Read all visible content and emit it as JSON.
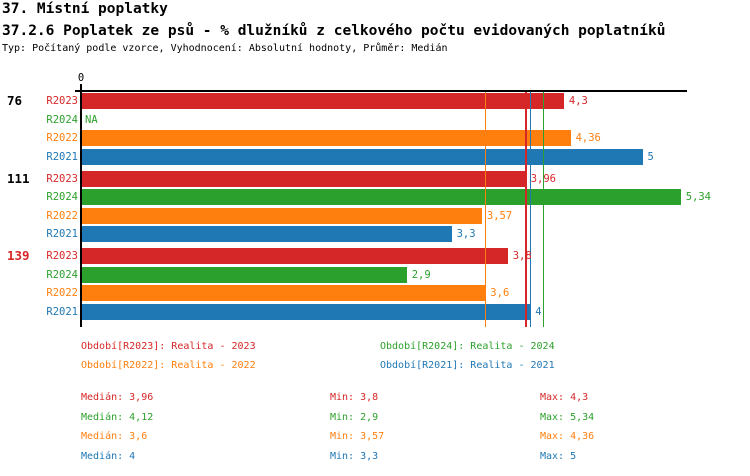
{
  "header": {
    "section_title": "37. Místní poplatky",
    "chart_title": "37.2.6 Poplatek ze psů - % dlužníků z celkového počtu evidovaných poplatníků",
    "meta": "Typ: Počítaný podle vzorce, Vyhodnocení: Absolutní hodnoty, Průměr: Medián"
  },
  "chart_data": {
    "type": "bar",
    "orientation": "horizontal",
    "title": "37.2.6 Poplatek ze psů - % dlužníků z celkového počtu evidovaných poplatníků",
    "xlabel": "",
    "ylabel": "",
    "xlim": [
      0,
      5.4
    ],
    "x_tick_labels": [
      "0"
    ],
    "grid": false,
    "categories": [
      "76",
      "111",
      "139"
    ],
    "category_label_colors": [
      "#000000",
      "#000000",
      "#d62728"
    ],
    "bar_order": [
      "R2023",
      "R2024",
      "R2022",
      "R2021"
    ],
    "series": [
      {
        "name": "R2023",
        "legend": "Realita - 2023",
        "color": "#d62728",
        "values": [
          4.3,
          3.96,
          3.8
        ],
        "value_labels": [
          "4,3",
          "3,96",
          "3,8"
        ],
        "median": 3.96,
        "min": 3.8,
        "max": 4.3
      },
      {
        "name": "R2024",
        "legend": "Realita - 2024",
        "color": "#2ca02c",
        "values": [
          null,
          5.34,
          2.9
        ],
        "value_labels": [
          "NA",
          "5,34",
          "2,9"
        ],
        "median": 4.12,
        "min": 2.9,
        "max": 5.34
      },
      {
        "name": "R2022",
        "legend": "Realita - 2022",
        "color": "#ff7f0e",
        "values": [
          4.36,
          3.57,
          3.6
        ],
        "value_labels": [
          "4,36",
          "3,57",
          "3,6"
        ],
        "median": 3.6,
        "min": 3.57,
        "max": 4.36
      },
      {
        "name": "R2021",
        "legend": "Realita - 2021",
        "color": "#1f77b4",
        "values": [
          5,
          3.3,
          4
        ],
        "value_labels": [
          "5",
          "3,3",
          "4"
        ],
        "median": 4,
        "min": 3.3,
        "max": 5
      }
    ],
    "median_lines_shown": true,
    "legend_position": "bottom"
  },
  "legend": [
    {
      "series": "R2023",
      "text": "Období[R2023]: Realita - 2023"
    },
    {
      "series": "R2024",
      "text": "Období[R2024]: Realita - 2024"
    },
    {
      "series": "R2022",
      "text": "Období[R2022]: Realita - 2022"
    },
    {
      "series": "R2021",
      "text": "Období[R2021]: Realita - 2021"
    }
  ],
  "stats": [
    {
      "series": "R2023",
      "median": "Medián: 3,96",
      "min": "Min: 3,8",
      "max": "Max: 4,3"
    },
    {
      "series": "R2024",
      "median": "Medián: 4,12",
      "min": "Min: 2,9",
      "max": "Max: 5,34"
    },
    {
      "series": "R2022",
      "median": "Medián: 3,6",
      "min": "Min: 3,57",
      "max": "Max: 4,36"
    },
    {
      "series": "R2021",
      "median": "Medián: 4",
      "min": "Min: 3,3",
      "max": "Max: 5"
    }
  ]
}
